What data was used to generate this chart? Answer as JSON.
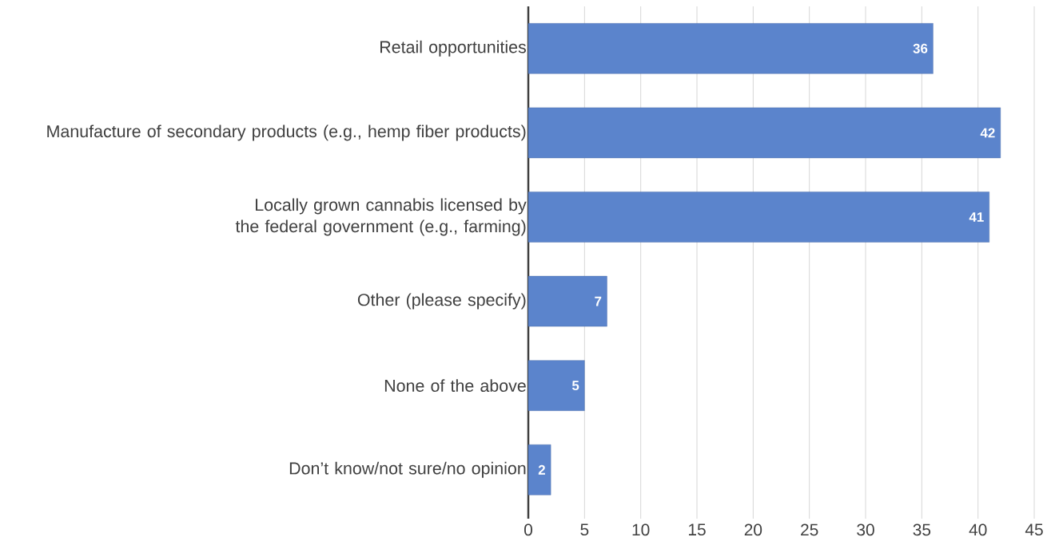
{
  "chart_data": {
    "type": "bar",
    "orientation": "horizontal",
    "categories": [
      "Retail opportunities",
      "Manufacture of secondary products (e.g., hemp fiber products)",
      "Locally grown cannabis licensed by the federal government (e.g., farming)",
      "Other (please specify)",
      "None of the above",
      "Don’t know/not sure/no opinion"
    ],
    "values": [
      36,
      42,
      41,
      7,
      5,
      2
    ],
    "color": "#5b84cc",
    "xlim": [
      0,
      45
    ],
    "xticks": [
      0,
      5,
      10,
      15,
      20,
      25,
      30,
      35,
      40,
      45
    ],
    "grid": "x",
    "data_labels": true
  }
}
